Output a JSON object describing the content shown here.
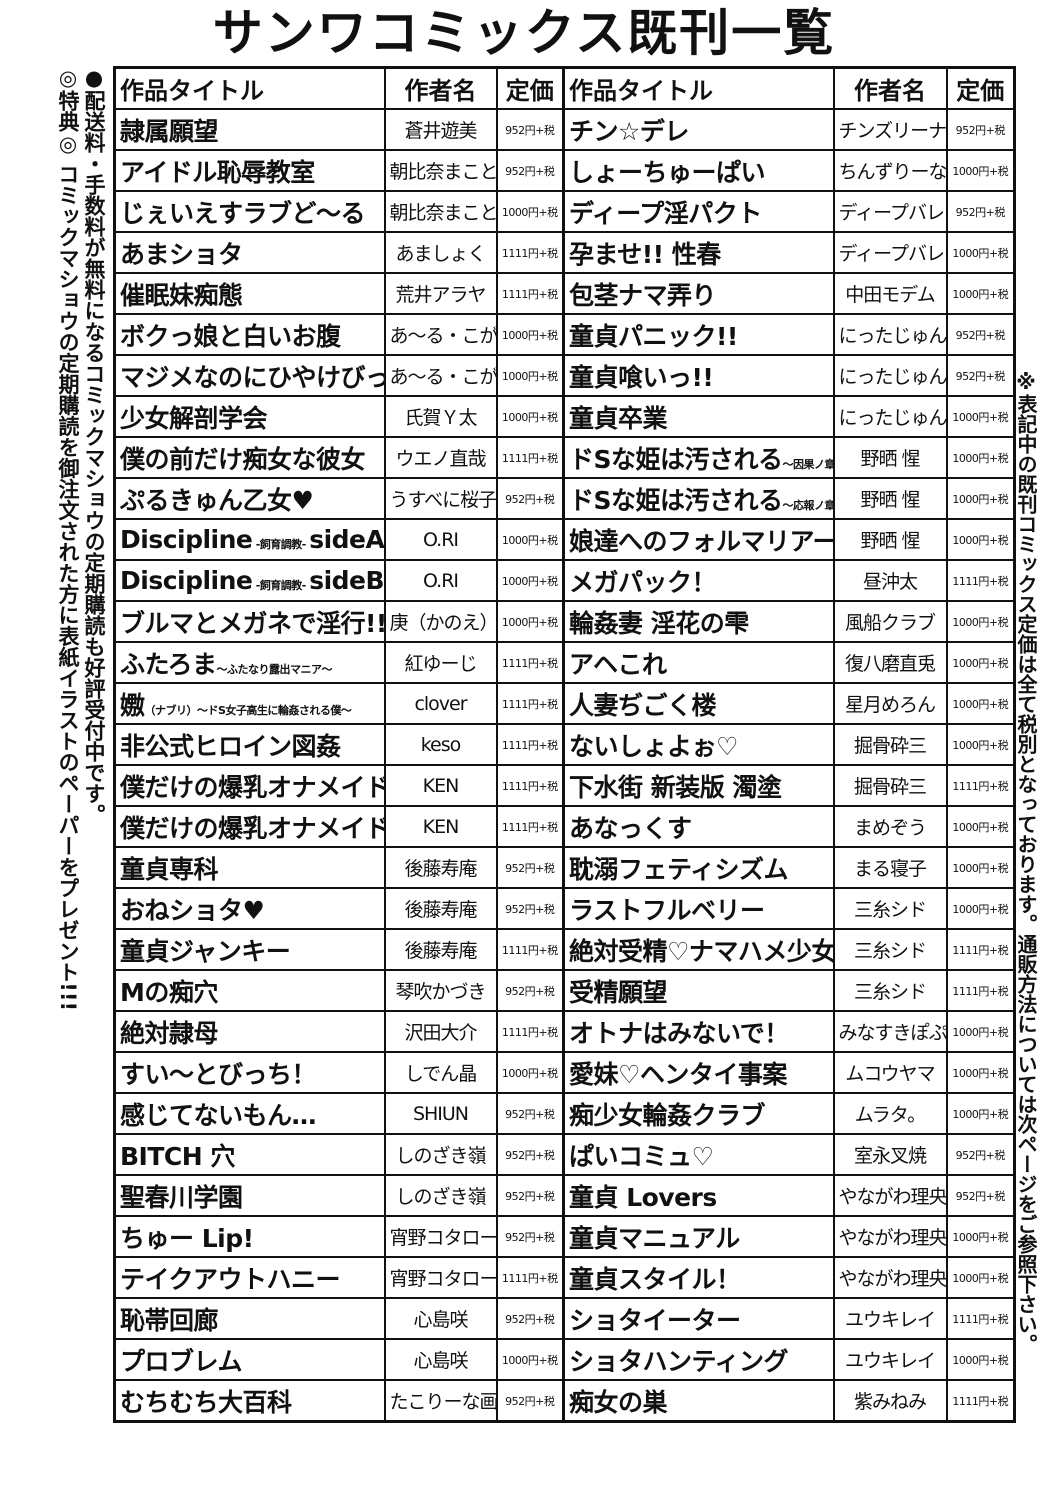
{
  "page_title": "サンワコミックス既刊一覧",
  "notes": {
    "left_1": "●配送料・手数料が無料になるコミックマショウの定期購読も好評受付中です。",
    "left_2": "◎特典◎ コミックマショウの定期購読を御注文された方に表紙イラストのペーパーをプレゼント!!!",
    "right": "※表記中の既刊コミックス定価は全て税別となっております。通販方法については次ページをご参照下さい。"
  },
  "headers": {
    "title": "作品タイトル",
    "author": "作者名",
    "price": "定価"
  },
  "left_rows": [
    {
      "title": "隷属願望",
      "sub": "",
      "author": "蒼井遊美",
      "price": "952円+税"
    },
    {
      "title": "アイドル恥辱教室",
      "sub": "",
      "author": "朝比奈まこと",
      "price": "952円+税"
    },
    {
      "title": "じぇいえすラブど〜る",
      "sub": "",
      "author": "朝比奈まこと",
      "price": "1000円+税"
    },
    {
      "title": "あまショタ",
      "sub": "",
      "author": "あましょく",
      "price": "1111円+税"
    },
    {
      "title": "催眠妹痴態",
      "sub": "",
      "author": "荒井アラヤ",
      "price": "1111円+税"
    },
    {
      "title": "ボクっ娘と白いお腹",
      "sub": "",
      "author": "あ〜る・こが",
      "price": "1000円+税"
    },
    {
      "title": "マジメなのにひやけびっち♡",
      "sub": "",
      "author": "あ〜る・こが",
      "price": "1000円+税"
    },
    {
      "title": "少女解剖学会",
      "sub": "",
      "author": "氏賀Ｙ太",
      "price": "1000円+税"
    },
    {
      "title": "僕の前だけ痴女な彼女",
      "sub": "",
      "author": "ウエノ直哉",
      "price": "1111円+税"
    },
    {
      "title": "ぷるきゅん乙女♥",
      "sub": "",
      "author": "うすべに桜子",
      "price": "952円+税"
    },
    {
      "title": "Discipline",
      "sub": " -飼育調教- ",
      "title2": "sideA",
      "author": "O.RI",
      "price": "1000円+税"
    },
    {
      "title": "Discipline",
      "sub": " -飼育調教- ",
      "title2": "sideB",
      "author": "O.RI",
      "price": "1000円+税"
    },
    {
      "title": "ブルマとメガネで淫行!!",
      "sub": "",
      "author": "庚（かのえ）",
      "price": "1000円+税"
    },
    {
      "title": "ふたろま",
      "sub": "〜ふたなり露出マニア〜",
      "author": "紅ゆーじ",
      "price": "1111円+税"
    },
    {
      "title": "嫐",
      "sub": "（ナブリ）〜ドS女子高生に輪姦される僕〜",
      "author": "clover",
      "price": "1111円+税"
    },
    {
      "title": "非公式ヒロイン図姦",
      "sub": "",
      "author": "keso",
      "price": "1111円+税"
    },
    {
      "title": "僕だけの爆乳オナメイド 上",
      "sub": "",
      "author": "KEN",
      "price": "1111円+税"
    },
    {
      "title": "僕だけの爆乳オナメイド 下",
      "sub": "",
      "author": "KEN",
      "price": "1111円+税"
    },
    {
      "title": "童貞専科",
      "sub": "",
      "author": "後藤寿庵",
      "price": "952円+税"
    },
    {
      "title": "おねショタ♥",
      "sub": "",
      "author": "後藤寿庵",
      "price": "952円+税"
    },
    {
      "title": "童貞ジャンキー",
      "sub": "",
      "author": "後藤寿庵",
      "price": "1111円+税"
    },
    {
      "title": "Mの痴穴",
      "sub": "",
      "author": "琴吹かづき",
      "price": "952円+税"
    },
    {
      "title": "絶対隷母",
      "sub": "",
      "author": "沢田大介",
      "price": "1111円+税"
    },
    {
      "title": "すい〜とびっち！",
      "sub": "",
      "author": "しでん晶",
      "price": "1000円+税"
    },
    {
      "title": "感じてないもん…",
      "sub": "",
      "author": "SHIUN",
      "price": "952円+税"
    },
    {
      "title": "BITCH 穴",
      "sub": "",
      "author": "しのざき嶺",
      "price": "952円+税"
    },
    {
      "title": "聖春川学園",
      "sub": "",
      "author": "しのざき嶺",
      "price": "952円+税"
    },
    {
      "title": "ちゅー Lip!",
      "sub": "",
      "author": "宵野コタロー",
      "price": "952円+税"
    },
    {
      "title": "テイクアウトハニー",
      "sub": "",
      "author": "宵野コタロー",
      "price": "1111円+税"
    },
    {
      "title": "恥帯回廊",
      "sub": "",
      "author": "心島咲",
      "price": "952円+税"
    },
    {
      "title": "プロブレム",
      "sub": "",
      "author": "心島咲",
      "price": "1000円+税"
    },
    {
      "title": "むちむち大百科",
      "sub": "",
      "author": "たこりーな画伯",
      "price": "952円+税"
    }
  ],
  "right_rows": [
    {
      "title": "チン☆デレ",
      "sub": "",
      "author": "チンズリーナ",
      "price": "952円+税"
    },
    {
      "title": "しょーちゅーぱい",
      "sub": "",
      "author": "ちんずりーな",
      "price": "1000円+税"
    },
    {
      "title": "ディープ淫パクト",
      "sub": "",
      "author": "ディープバレー",
      "price": "952円+税"
    },
    {
      "title": "孕ませ!! 性春",
      "sub": "",
      "author": "ディープバレー",
      "price": "1000円+税"
    },
    {
      "title": "包茎ナマ弄り",
      "sub": "",
      "author": "中田モデム",
      "price": "1000円+税"
    },
    {
      "title": "童貞パニック!!",
      "sub": "",
      "author": "にったじゅん",
      "price": "952円+税"
    },
    {
      "title": "童貞喰いっ!!",
      "sub": "",
      "author": "にったじゅん",
      "price": "952円+税"
    },
    {
      "title": "童貞卒業",
      "sub": "",
      "author": "にったじゅん",
      "price": "1000円+税"
    },
    {
      "title": "ドSな姫は汚される",
      "sub": "〜因果ノ章〜",
      "author": "野晒 惺",
      "price": "1000円+税"
    },
    {
      "title": "ドSな姫は汚される",
      "sub": "〜応報ノ章〜",
      "author": "野晒 惺",
      "price": "1000円+税"
    },
    {
      "title": "娘達へのフォルマリアージュ",
      "sub": "",
      "author": "野晒 惺",
      "price": "1000円+税"
    },
    {
      "title": "メガパック！",
      "sub": "",
      "author": "昼沖太",
      "price": "1111円+税"
    },
    {
      "title": "輪姦妻 淫花の雫",
      "sub": "",
      "author": "風船クラブ",
      "price": "1000円+税"
    },
    {
      "title": "アヘこれ",
      "sub": "",
      "author": "復八磨直兎",
      "price": "1000円+税"
    },
    {
      "title": "人妻ぢごく楼",
      "sub": "",
      "author": "星月めろん",
      "price": "1000円+税"
    },
    {
      "title": "ないしょよぉ♡",
      "sub": "",
      "author": "掘骨砕三",
      "price": "1000円+税"
    },
    {
      "title": "下水街 新装版 濁塗",
      "sub": "",
      "author": "掘骨砕三",
      "price": "1111円+税"
    },
    {
      "title": "あなっくす",
      "sub": "",
      "author": "まめぞう",
      "price": "1000円+税"
    },
    {
      "title": "耽溺フェティシズム",
      "sub": "",
      "author": "まる寝子",
      "price": "1000円+税"
    },
    {
      "title": "ラストフルベリー",
      "sub": "",
      "author": "三糸シド",
      "price": "1000円+税"
    },
    {
      "title": "絶対受精♡ナマハメ少女",
      "sub": "",
      "author": "三糸シド",
      "price": "1111円+税"
    },
    {
      "title": "受精願望",
      "sub": "",
      "author": "三糸シド",
      "price": "1111円+税"
    },
    {
      "title": "オトナはみないで！",
      "sub": "",
      "author": "みなすきぽぷり",
      "price": "1000円+税"
    },
    {
      "title": "愛妹♡ヘンタイ事案",
      "sub": "",
      "author": "ムコウヤマ",
      "price": "1000円+税"
    },
    {
      "title": "痴少女輪姦クラブ",
      "sub": "",
      "author": "ムラタ。",
      "price": "1000円+税"
    },
    {
      "title": "ぱいコミュ♡",
      "sub": "",
      "author": "室永叉焼",
      "price": "952円+税"
    },
    {
      "title": "童貞 Lovers",
      "sub": "",
      "author": "やながわ理央",
      "price": "952円+税"
    },
    {
      "title": "童貞マニュアル",
      "sub": "",
      "author": "やながわ理央",
      "price": "1000円+税"
    },
    {
      "title": "童貞スタイル！",
      "sub": "",
      "author": "やながわ理央",
      "price": "1000円+税"
    },
    {
      "title": "ショタイーター",
      "sub": "",
      "author": "ユウキレイ",
      "price": "1111円+税"
    },
    {
      "title": "ショタハンティング",
      "sub": "",
      "author": "ユウキレイ",
      "price": "1000円+税"
    },
    {
      "title": "痴女の巣",
      "sub": "",
      "author": "紫みねみ",
      "price": "1111円+税"
    }
  ]
}
